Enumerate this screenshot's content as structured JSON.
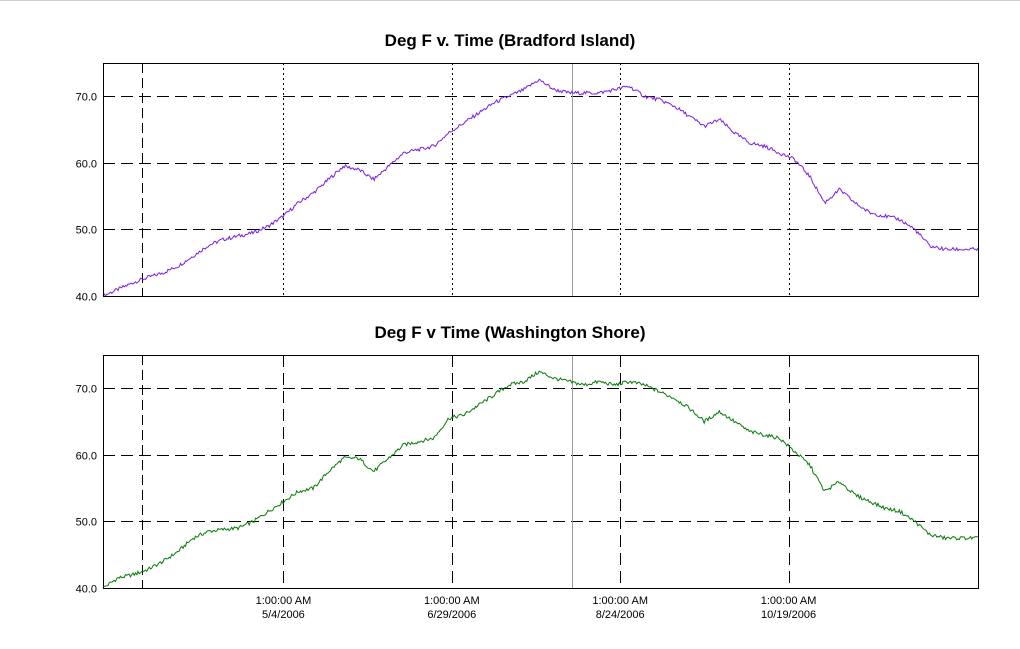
{
  "chart_data": [
    {
      "type": "line",
      "title": "Deg F v. Time (Bradford Island)",
      "ylim": [
        40,
        75
      ],
      "yticks": [
        "40.0",
        "50.0",
        "60.0",
        "70.0"
      ],
      "ytick_values": [
        40,
        50,
        60,
        70
      ],
      "xlim": [
        "2006-03-05",
        "2006-12-21"
      ],
      "xticks": [],
      "grid": true,
      "line_color": "#7b1fe0",
      "series": [
        {
          "x": [
            "2006-03-05",
            "2006-03-10",
            "2006-03-15",
            "2006-03-20",
            "2006-03-25",
            "2006-03-30",
            "2006-04-04",
            "2006-04-09",
            "2006-04-14",
            "2006-04-19",
            "2006-04-24",
            "2006-04-29",
            "2006-05-04",
            "2006-05-09",
            "2006-05-14",
            "2006-05-19",
            "2006-05-24",
            "2006-05-29",
            "2006-06-03",
            "2006-06-08",
            "2006-06-13",
            "2006-06-18",
            "2006-06-23",
            "2006-06-28",
            "2006-07-03",
            "2006-07-08",
            "2006-07-13",
            "2006-07-18",
            "2006-07-23",
            "2006-07-28",
            "2006-08-02",
            "2006-08-07",
            "2006-08-12",
            "2006-08-17",
            "2006-08-22",
            "2006-08-27",
            "2006-09-01",
            "2006-09-06",
            "2006-09-11",
            "2006-09-16",
            "2006-09-21",
            "2006-09-26",
            "2006-10-01",
            "2006-10-06",
            "2006-10-11",
            "2006-10-16",
            "2006-10-21",
            "2006-10-26",
            "2006-10-31",
            "2006-11-05",
            "2006-11-10",
            "2006-11-15",
            "2006-11-20",
            "2006-11-25",
            "2006-11-30",
            "2006-12-05",
            "2006-12-10",
            "2006-12-15",
            "2006-12-21"
          ],
          "values": [
            40.0,
            41.0,
            42.0,
            42.8,
            43.5,
            44.5,
            46.0,
            47.6,
            48.5,
            49.0,
            49.5,
            50.5,
            52.0,
            54.0,
            55.5,
            57.5,
            59.5,
            59.0,
            57.5,
            59.5,
            61.5,
            62.0,
            62.5,
            64.5,
            66.0,
            67.5,
            69.0,
            70.0,
            71.0,
            72.5,
            71.0,
            70.5,
            70.5,
            70.5,
            71.0,
            71.5,
            70.0,
            69.5,
            68.5,
            67.0,
            65.5,
            66.5,
            64.5,
            63.0,
            62.5,
            61.5,
            60.5,
            58.0,
            54.0,
            56.0,
            54.0,
            52.5,
            52.0,
            51.5,
            50.0,
            47.5,
            47.0,
            47.0,
            47.0
          ]
        }
      ]
    },
    {
      "type": "line",
      "title": "Deg F v Time (Washington Shore)",
      "ylim": [
        40,
        75
      ],
      "yticks": [
        "40.0",
        "50.0",
        "60.0",
        "70.0"
      ],
      "ytick_values": [
        40,
        50,
        60,
        70
      ],
      "xlim": [
        "2006-03-05",
        "2006-12-21"
      ],
      "xticks": [
        {
          "time": "1:00:00 AM",
          "date": "5/4/2006",
          "x": "2006-05-04"
        },
        {
          "time": "1:00:00 AM",
          "date": "6/29/2006",
          "x": "2006-06-29"
        },
        {
          "time": "1:00:00 AM",
          "date": "8/24/2006",
          "x": "2006-08-24"
        },
        {
          "time": "1:00:00 AM",
          "date": "10/19/2006",
          "x": "2006-10-19"
        }
      ],
      "grid": true,
      "line_color": "#0a7a0a",
      "series": [
        {
          "x": [
            "2006-03-05",
            "2006-03-10",
            "2006-03-15",
            "2006-03-20",
            "2006-03-25",
            "2006-03-30",
            "2006-04-04",
            "2006-04-09",
            "2006-04-14",
            "2006-04-19",
            "2006-04-24",
            "2006-04-29",
            "2006-05-04",
            "2006-05-09",
            "2006-05-14",
            "2006-05-19",
            "2006-05-24",
            "2006-05-29",
            "2006-06-03",
            "2006-06-08",
            "2006-06-13",
            "2006-06-18",
            "2006-06-23",
            "2006-06-28",
            "2006-07-03",
            "2006-07-08",
            "2006-07-13",
            "2006-07-18",
            "2006-07-23",
            "2006-07-28",
            "2006-08-02",
            "2006-08-07",
            "2006-08-12",
            "2006-08-17",
            "2006-08-22",
            "2006-08-27",
            "2006-09-01",
            "2006-09-06",
            "2006-09-11",
            "2006-09-16",
            "2006-09-21",
            "2006-09-26",
            "2006-10-01",
            "2006-10-06",
            "2006-10-11",
            "2006-10-16",
            "2006-10-21",
            "2006-10-26",
            "2006-10-31",
            "2006-11-05",
            "2006-11-10",
            "2006-11-15",
            "2006-11-20",
            "2006-11-25",
            "2006-11-30",
            "2006-12-05",
            "2006-12-10",
            "2006-12-15",
            "2006-12-21"
          ],
          "values": [
            40.0,
            41.5,
            42.0,
            42.8,
            44.0,
            45.5,
            47.5,
            48.5,
            48.8,
            49.0,
            50.0,
            51.5,
            53.0,
            54.5,
            55.0,
            57.5,
            59.5,
            59.5,
            57.5,
            59.5,
            61.5,
            62.0,
            62.5,
            65.5,
            66.0,
            67.5,
            69.0,
            70.5,
            71.0,
            72.5,
            71.5,
            71.0,
            70.5,
            71.0,
            70.5,
            71.0,
            70.5,
            69.5,
            68.5,
            67.0,
            65.0,
            66.5,
            65.0,
            63.5,
            63.0,
            62.5,
            60.5,
            58.5,
            54.5,
            56.0,
            54.0,
            53.0,
            52.0,
            51.5,
            50.0,
            48.0,
            47.5,
            47.5,
            47.5
          ]
        }
      ]
    }
  ]
}
